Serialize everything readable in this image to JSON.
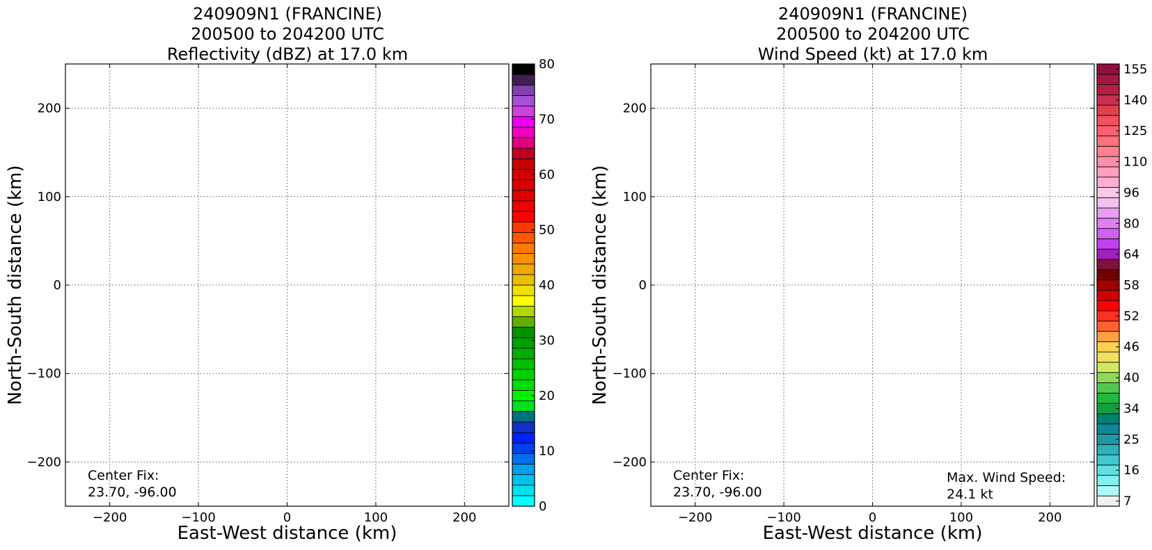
{
  "charts": [
    {
      "title_lines": [
        "240909N1 (FRANCINE)",
        "200500 to 204200 UTC",
        "Reflectivity (dBZ) at 17.0 km"
      ],
      "annotation_left": [
        "Center Fix:",
        "23.70, -96.00"
      ],
      "colorbar": {
        "tick_labels": [
          "0",
          "10",
          "20",
          "30",
          "40",
          "50",
          "60",
          "70",
          "80"
        ],
        "colors": [
          "#00ffff",
          "#00e0ee",
          "#00c0ee",
          "#00a0ee",
          "#0070ee",
          "#0040ee",
          "#0020ff",
          "#1030c8",
          "#007080",
          "#00e020",
          "#00f000",
          "#00e000",
          "#00d000",
          "#00c000",
          "#00b000",
          "#00a000",
          "#009000",
          "#60b000",
          "#b0d800",
          "#ffff00",
          "#f0e000",
          "#e8c000",
          "#f0a800",
          "#f89000",
          "#ff7800",
          "#ff5800",
          "#ff3800",
          "#ff0000",
          "#f00000",
          "#e00000",
          "#d80000",
          "#d00000",
          "#c80000",
          "#c00020",
          "#e00080",
          "#f000c0",
          "#f000f0",
          "#d040e0",
          "#a850d8",
          "#8040b0",
          "#402050",
          "#000000"
        ]
      }
    },
    {
      "title_lines": [
        "240909N1 (FRANCINE)",
        "200500 to 204200 UTC",
        "Wind Speed (kt) at 17.0 km"
      ],
      "annotation_left": [
        "Center Fix:",
        "23.70, -96.00"
      ],
      "annotation_right": [
        "Max. Wind Speed:",
        "24.1 kt"
      ],
      "colorbar": {
        "tick_labels": [
          "7",
          "16",
          "25",
          "34",
          "40",
          "46",
          "52",
          "58",
          "64",
          "80",
          "96",
          "110",
          "125",
          "140",
          "155"
        ],
        "colors": [
          "#f0f0f0",
          "#b0f8f8",
          "#80f0f0",
          "#60e0e0",
          "#40c8d0",
          "#30b0b8",
          "#2098a8",
          "#108898",
          "#008070",
          "#10a040",
          "#20b840",
          "#50c850",
          "#90d858",
          "#d0e860",
          "#f0e060",
          "#ffd050",
          "#ffa040",
          "#ff6030",
          "#ff3020",
          "#ff0000",
          "#d00000",
          "#a00000",
          "#700000",
          "#801040",
          "#a020c0",
          "#c040f0",
          "#d060f0",
          "#e080f0",
          "#e8a0f0",
          "#f0c0f0",
          "#f8c8e8",
          "#ffb0d0",
          "#ffa0c0",
          "#ff90a8",
          "#ff8090",
          "#ff7080",
          "#ff6070",
          "#f05060",
          "#e04050",
          "#c83050",
          "#b02040",
          "#a01840",
          "#901040"
        ]
      }
    }
  ],
  "chart_data": [
    {
      "type": "heatmap",
      "title": "240909N1 (FRANCINE) 200500 to 204200 UTC Reflectivity (dBZ) at 17.0 km",
      "xlabel": "East-West distance (km)",
      "ylabel": "North-South distance (km)",
      "xlim": [
        -250,
        250
      ],
      "ylim": [
        -250,
        250
      ],
      "xticks": [
        -200,
        -100,
        0,
        100,
        200
      ],
      "yticks": [
        -200,
        -100,
        0,
        100,
        200
      ],
      "xtick_labels": [
        "−200",
        "−100",
        "0",
        "100",
        "200"
      ],
      "ytick_labels": [
        "−200",
        "−100",
        "0",
        "100",
        "200"
      ],
      "grid": true,
      "colorbar_range": [
        0,
        80
      ],
      "values": []
    },
    {
      "type": "heatmap",
      "title": "240909N1 (FRANCINE) 200500 to 204200 UTC Wind Speed (kt) at 17.0 km",
      "xlabel": "East-West distance (km)",
      "ylabel": "North-South distance (km)",
      "xlim": [
        -250,
        250
      ],
      "ylim": [
        -250,
        250
      ],
      "xticks": [
        -200,
        -100,
        0,
        100,
        200
      ],
      "yticks": [
        -200,
        -100,
        0,
        100,
        200
      ],
      "xtick_labels": [
        "−200",
        "−100",
        "0",
        "100",
        "200"
      ],
      "ytick_labels": [
        "−200",
        "−100",
        "0",
        "100",
        "200"
      ],
      "grid": true,
      "values": []
    }
  ]
}
